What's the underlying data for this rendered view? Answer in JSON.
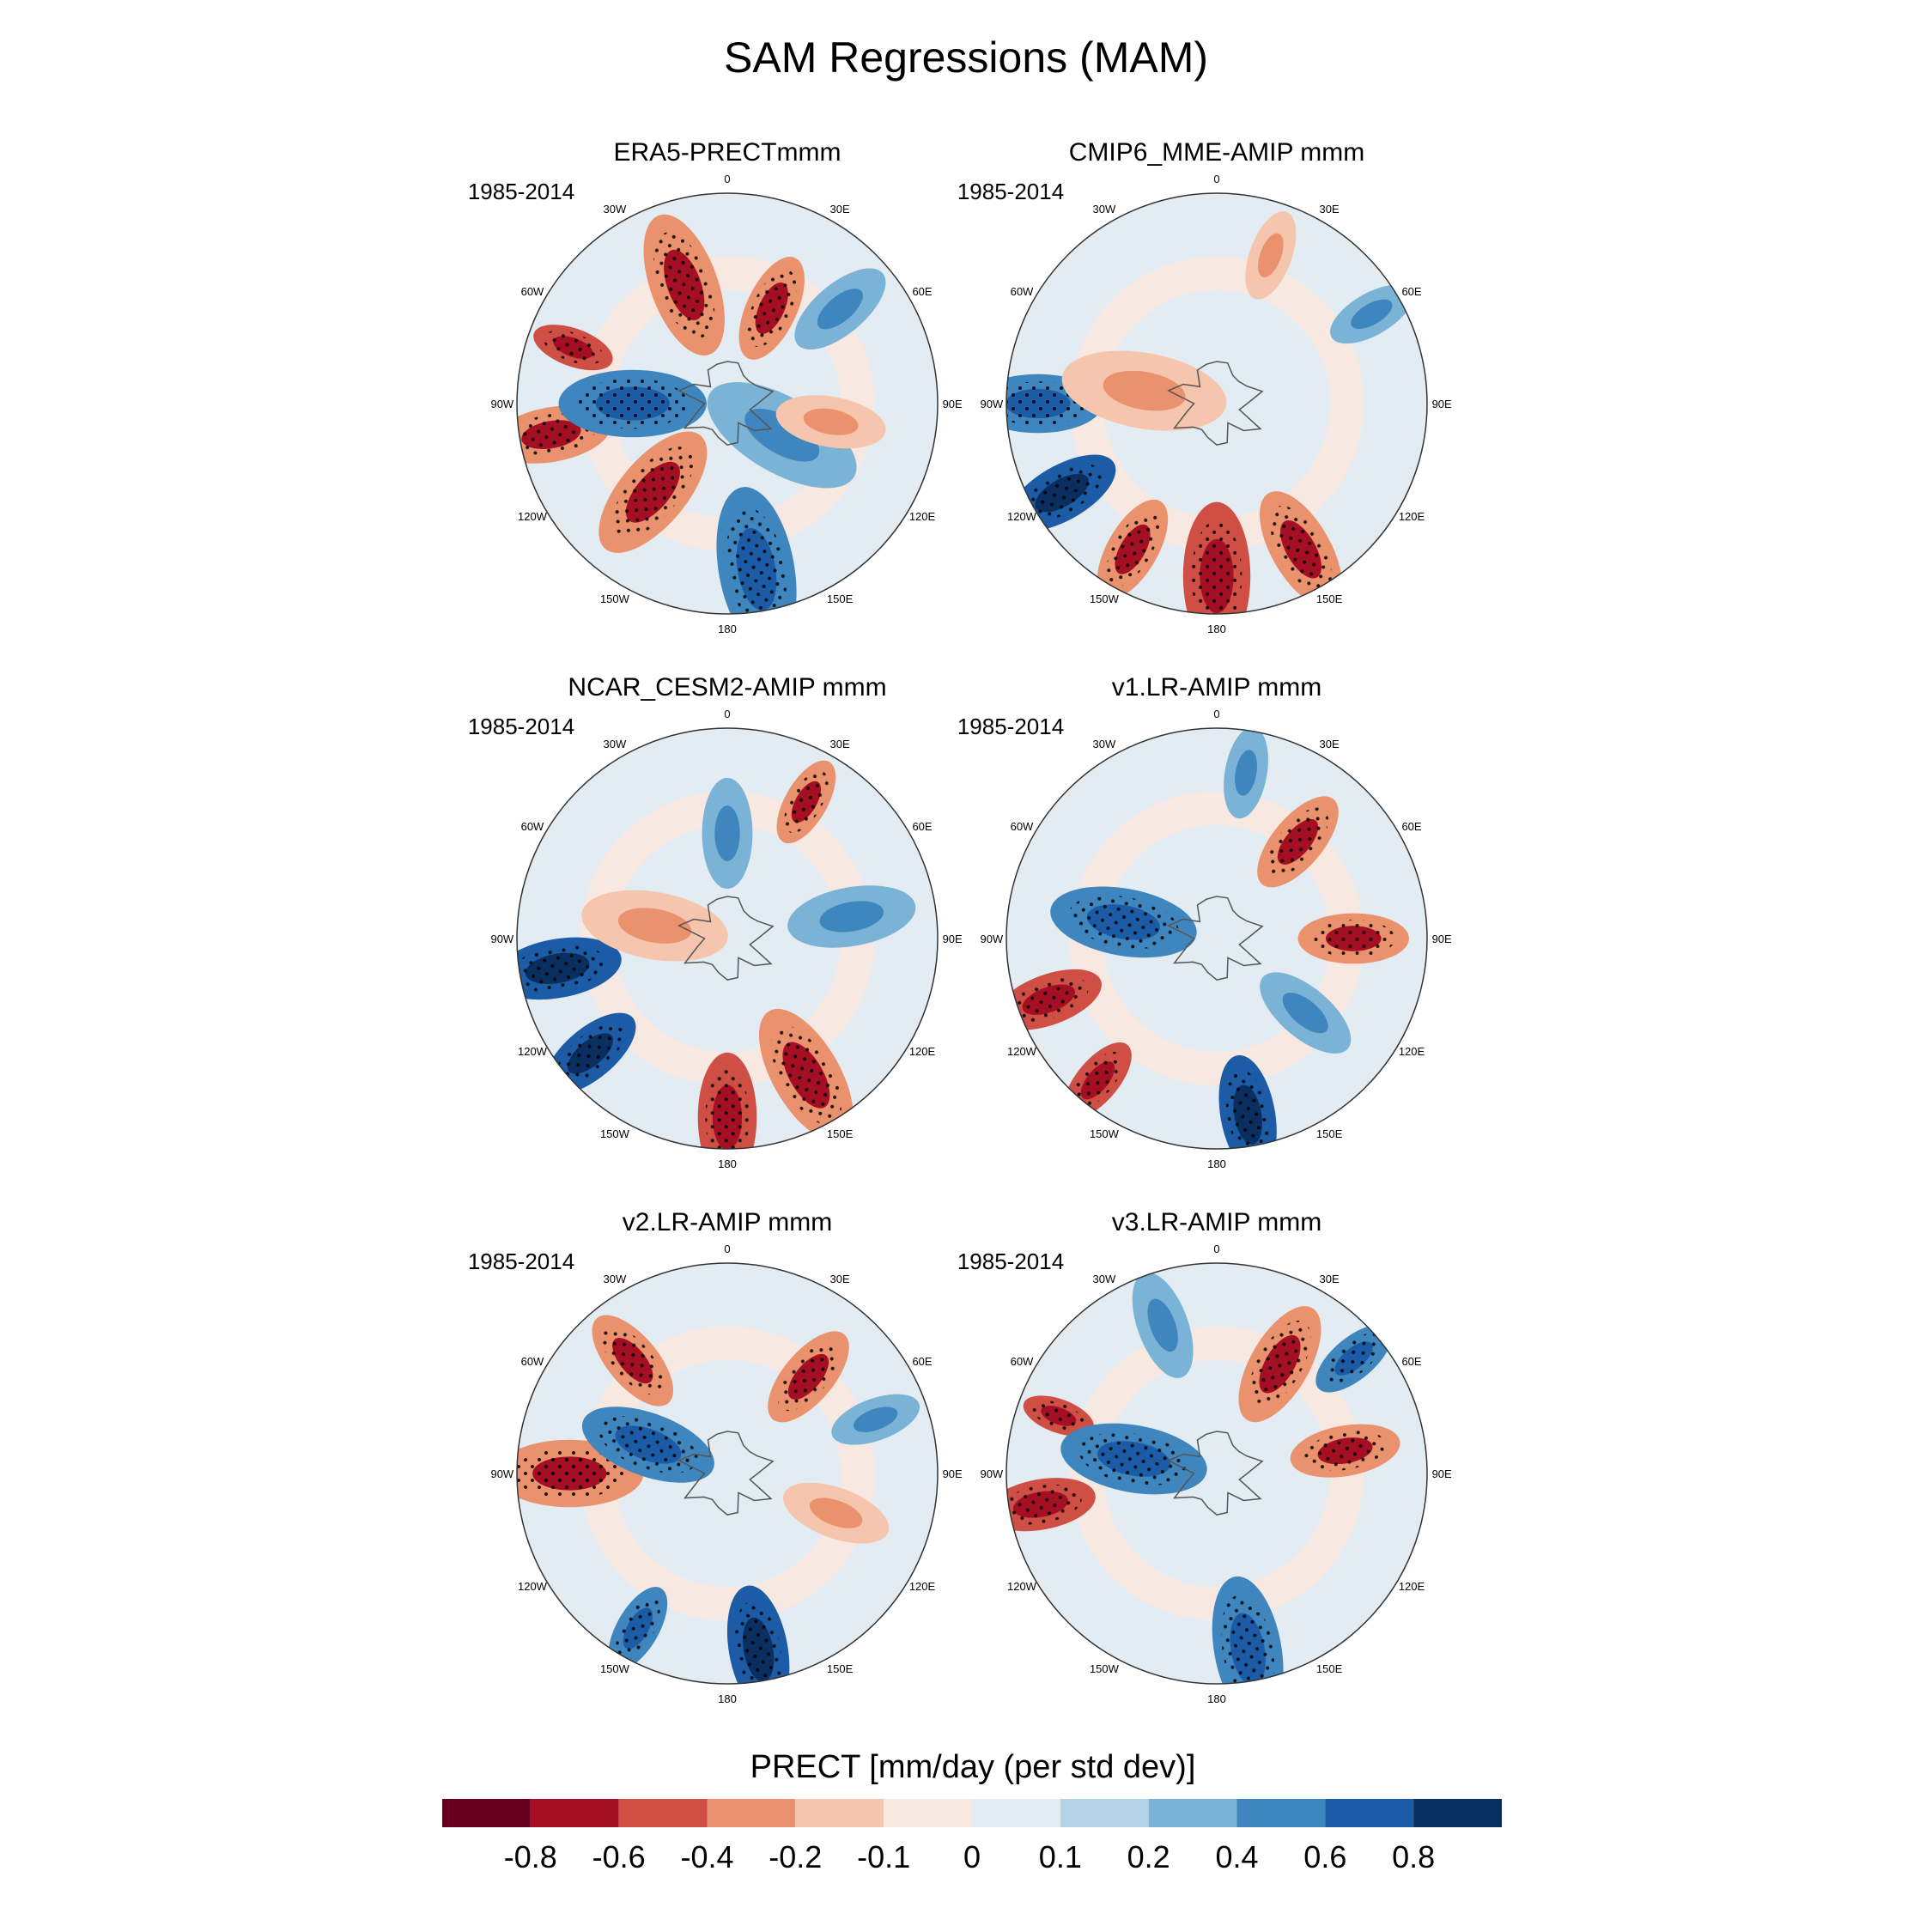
{
  "figure": {
    "title": "SAM Regressions (MAM)"
  },
  "chart_data": {
    "type": "heatmap",
    "projection": "south-polar-stereographic",
    "variable": "PRECT",
    "units": "mm/day (per std dev)",
    "stippling": "statistically significant regions",
    "longitude_labels": [
      "0",
      "30E",
      "60E",
      "90E",
      "120E",
      "150E",
      "180",
      "150W",
      "120W",
      "90W",
      "60W",
      "30W"
    ],
    "panels": [
      {
        "title": "ERA5-PRECTmmm",
        "period": "1985-2014",
        "features": [
          {
            "lon": -70,
            "r": 0.78,
            "v": -0.6,
            "s": 0.09
          },
          {
            "lon": -20,
            "r": 0.6,
            "v": -0.4,
            "s": 0.16
          },
          {
            "lon": 25,
            "r": 0.5,
            "v": -0.4,
            "s": 0.12
          },
          {
            "lon": 50,
            "r": 0.7,
            "v": 0.2,
            "s": 0.12
          },
          {
            "lon": -100,
            "r": 0.85,
            "v": -0.4,
            "s": 0.13
          },
          {
            "lon": -90,
            "r": 0.45,
            "v": 0.4,
            "s": 0.16
          },
          {
            "lon": -140,
            "r": 0.55,
            "v": -0.4,
            "s": 0.16
          },
          {
            "lon": 170,
            "r": 0.8,
            "v": 0.4,
            "s": 0.18
          },
          {
            "lon": 120,
            "r": 0.3,
            "v": 0.2,
            "s": 0.18
          },
          {
            "lon": 100,
            "r": 0.5,
            "v": -0.2,
            "s": 0.12
          }
        ]
      },
      {
        "title": "CMIP6_MME-AMIP  mmm",
        "period": "1985-2014",
        "features": [
          {
            "lon": -90,
            "r": 0.85,
            "v": 0.4,
            "s": 0.14
          },
          {
            "lon": -120,
            "r": 0.85,
            "v": 0.6,
            "s": 0.13
          },
          {
            "lon": 180,
            "r": 0.82,
            "v": -0.6,
            "s": 0.16
          },
          {
            "lon": 150,
            "r": 0.8,
            "v": -0.4,
            "s": 0.14
          },
          {
            "lon": 210,
            "r": 0.8,
            "v": -0.4,
            "s": 0.12
          },
          {
            "lon": -80,
            "r": 0.35,
            "v": -0.2,
            "s": 0.18
          },
          {
            "lon": 60,
            "r": 0.85,
            "v": 0.2,
            "s": 0.1
          },
          {
            "lon": 20,
            "r": 0.75,
            "v": -0.2,
            "s": 0.1
          }
        ]
      },
      {
        "title": "NCAR_CESM2-AMIP  mmm",
        "period": "1985-2014",
        "features": [
          {
            "lon": -100,
            "r": 0.82,
            "v": 0.6,
            "s": 0.14
          },
          {
            "lon": -130,
            "r": 0.85,
            "v": 0.6,
            "s": 0.12
          },
          {
            "lon": 180,
            "r": 0.85,
            "v": -0.6,
            "s": 0.14
          },
          {
            "lon": 150,
            "r": 0.75,
            "v": -0.4,
            "s": 0.16
          },
          {
            "lon": 30,
            "r": 0.75,
            "v": -0.4,
            "s": 0.1
          },
          {
            "lon": -80,
            "r": 0.35,
            "v": -0.2,
            "s": 0.16
          },
          {
            "lon": 80,
            "r": 0.6,
            "v": 0.2,
            "s": 0.14
          },
          {
            "lon": 0,
            "r": 0.5,
            "v": 0.2,
            "s": 0.12
          }
        ]
      },
      {
        "title": "v1.LR-AMIP  mmm",
        "period": "1985-2014",
        "features": [
          {
            "lon": -110,
            "r": 0.85,
            "v": -0.6,
            "s": 0.12
          },
          {
            "lon": -140,
            "r": 0.88,
            "v": -0.6,
            "s": 0.1
          },
          {
            "lon": 170,
            "r": 0.85,
            "v": 0.6,
            "s": 0.13
          },
          {
            "lon": -80,
            "r": 0.45,
            "v": 0.4,
            "s": 0.16
          },
          {
            "lon": 40,
            "r": 0.6,
            "v": -0.4,
            "s": 0.12
          },
          {
            "lon": 90,
            "r": 0.65,
            "v": -0.4,
            "s": 0.12
          },
          {
            "lon": 130,
            "r": 0.55,
            "v": 0.2,
            "s": 0.12
          },
          {
            "lon": 10,
            "r": 0.8,
            "v": 0.2,
            "s": 0.1
          }
        ]
      },
      {
        "title": "v2.LR-AMIP  mmm",
        "period": "1985-2014",
        "features": [
          {
            "lon": -90,
            "r": 0.75,
            "v": -0.4,
            "s": 0.16
          },
          {
            "lon": -40,
            "r": 0.7,
            "v": -0.4,
            "s": 0.12
          },
          {
            "lon": 170,
            "r": 0.85,
            "v": 0.6,
            "s": 0.14
          },
          {
            "lon": -150,
            "r": 0.85,
            "v": 0.4,
            "s": 0.1
          },
          {
            "lon": -70,
            "r": 0.4,
            "v": 0.4,
            "s": 0.15
          },
          {
            "lon": 40,
            "r": 0.6,
            "v": -0.4,
            "s": 0.12
          },
          {
            "lon": 70,
            "r": 0.75,
            "v": 0.2,
            "s": 0.1
          },
          {
            "lon": 110,
            "r": 0.55,
            "v": -0.2,
            "s": 0.12
          }
        ]
      },
      {
        "title": "v3.LR-AMIP  mmm",
        "period": "1985-2014",
        "features": [
          {
            "lon": -100,
            "r": 0.85,
            "v": -0.6,
            "s": 0.12
          },
          {
            "lon": -70,
            "r": 0.8,
            "v": -0.6,
            "s": 0.08
          },
          {
            "lon": 30,
            "r": 0.6,
            "v": -0.4,
            "s": 0.14
          },
          {
            "lon": 80,
            "r": 0.62,
            "v": -0.4,
            "s": 0.12
          },
          {
            "lon": -80,
            "r": 0.4,
            "v": 0.4,
            "s": 0.16
          },
          {
            "lon": 170,
            "r": 0.85,
            "v": 0.4,
            "s": 0.16
          },
          {
            "lon": 50,
            "r": 0.85,
            "v": 0.4,
            "s": 0.1
          },
          {
            "lon": -20,
            "r": 0.75,
            "v": 0.2,
            "s": 0.12
          }
        ]
      }
    ],
    "colorbar": {
      "title": "PRECT [mm/day (per std dev)]",
      "levels": [
        "-0.8",
        "-0.6",
        "-0.4",
        "-0.2",
        "-0.1",
        "0",
        "0.1",
        "0.2",
        "0.4",
        "0.6",
        "0.8"
      ],
      "colors": [
        "#67001f",
        "#a50f23",
        "#cf4f45",
        "#e9926d",
        "#f6c5ad",
        "#f7e8e2",
        "#e2ecf2",
        "#b5d4e6",
        "#7ab3d5",
        "#3e86bd",
        "#1c5ca7",
        "#0b2e60"
      ]
    }
  }
}
